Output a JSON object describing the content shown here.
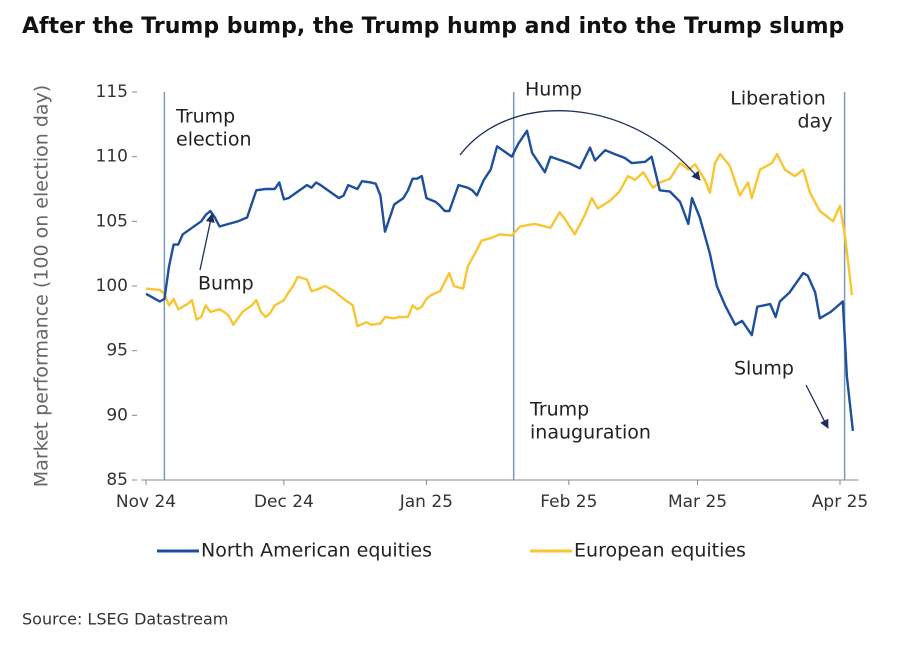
{
  "chart_data": {
    "type": "line",
    "title": "After the Trump bump, the Trump hump and into the Trump slump",
    "y_label": "Market performance (100 on election day)",
    "source": "Source: LSEG Datastream",
    "xlim": [
      -1,
      155
    ],
    "ylim": [
      85,
      115
    ],
    "yticks": [
      85,
      90,
      95,
      100,
      105,
      110,
      115
    ],
    "xticks": [
      {
        "value": 0,
        "label": "Nov 24"
      },
      {
        "value": 30,
        "label": "Dec 24"
      },
      {
        "value": 61,
        "label": "Jan 25"
      },
      {
        "value": 92,
        "label": "Feb 25"
      },
      {
        "value": 120,
        "label": "Mar 25"
      },
      {
        "value": 151,
        "label": "Apr 25"
      }
    ],
    "grid": false,
    "annotations": [
      {
        "lines": [
          "Trump",
          "election"
        ],
        "x": 4
      },
      {
        "lines": [
          "Trump",
          "inauguration"
        ],
        "x": 80
      },
      {
        "lines": [
          "Liberation",
          "day"
        ],
        "x": 152
      },
      {
        "lines": [
          "Bump"
        ]
      },
      {
        "lines": [
          "Hump"
        ]
      },
      {
        "lines": [
          "Slump"
        ]
      }
    ],
    "series": [
      {
        "name": "North American equities",
        "color": "#1d4f9c",
        "x": [
          0,
          2,
          3,
          4,
          5,
          6,
          7,
          8,
          10,
          12,
          13,
          14,
          15,
          16,
          18,
          20,
          22,
          24,
          26,
          28,
          29,
          30,
          31,
          33,
          35,
          36,
          37,
          38,
          40,
          42,
          43,
          44,
          46,
          47,
          49,
          50,
          51,
          52,
          54,
          56,
          57,
          58,
          59,
          60,
          61,
          63,
          64,
          65,
          66,
          68,
          70,
          71,
          72,
          73.5,
          75,
          76.4,
          78,
          79.6,
          81,
          82.9,
          84,
          86.8,
          88,
          89.6,
          92,
          94.4,
          96.6,
          97.7,
          99.9,
          102,
          104.2,
          105.7,
          108.6,
          110,
          111.8,
          114,
          116.2,
          118,
          118.8,
          120.5,
          122.7,
          124.2,
          126,
          128.2,
          129.7,
          131.8,
          133,
          135.8,
          137,
          137.9,
          140,
          143,
          144,
          145.6,
          146.6,
          149,
          151.6,
          152.5,
          153.8
        ],
        "values": [
          99.4,
          99.0,
          98.8,
          99.0,
          101.5,
          103.2,
          103.2,
          104.0,
          104.5,
          105.0,
          105.5,
          105.8,
          105.3,
          104.6,
          104.8,
          105.0,
          105.3,
          107.4,
          107.5,
          107.5,
          108.0,
          106.7,
          106.8,
          107.3,
          107.8,
          107.6,
          108.0,
          107.8,
          107.3,
          106.8,
          107.0,
          107.8,
          107.5,
          108.1,
          108.0,
          107.9,
          107.0,
          104.2,
          106.3,
          106.8,
          107.4,
          108.3,
          108.3,
          108.5,
          106.8,
          106.5,
          106.2,
          105.8,
          105.8,
          107.8,
          107.6,
          107.4,
          107.0,
          108.2,
          109.0,
          110.8,
          110.4,
          110.0,
          111.0,
          112.0,
          110.3,
          108.8,
          110.0,
          109.8,
          109.5,
          109.1,
          110.7,
          109.7,
          110.5,
          110.2,
          109.9,
          109.5,
          109.6,
          110.0,
          107.4,
          107.3,
          106.5,
          104.8,
          106.8,
          105.3,
          102.5,
          100.0,
          98.5,
          97.0,
          97.3,
          96.2,
          98.4,
          98.6,
          97.6,
          98.8,
          99.5,
          101.0,
          100.8,
          99.5,
          97.5,
          98.0,
          98.8,
          93.0,
          88.8
        ]
      },
      {
        "name": "European equities",
        "color": "#f8c630",
        "x": [
          0,
          3,
          4,
          5,
          6,
          7,
          9,
          10,
          11,
          12,
          13,
          14,
          16,
          17,
          18,
          19,
          20,
          21,
          23,
          24,
          25,
          26,
          27,
          28,
          30,
          31,
          32,
          33,
          35,
          36,
          37,
          39,
          41,
          43,
          45,
          46,
          48,
          49,
          51,
          52,
          54,
          55,
          57,
          58,
          59,
          60,
          61,
          62,
          64,
          65,
          66,
          67,
          69,
          70,
          72,
          73,
          75,
          77,
          79.6,
          81.4,
          84.6,
          88,
          90,
          91.1,
          93.3,
          95.5,
          97,
          98.3,
          101,
          103,
          104.9,
          106.4,
          108.2,
          110.3,
          111.8,
          114,
          116.2,
          118,
          119.5,
          121.6,
          122.7,
          123.8,
          124.9,
          127,
          129.2,
          131,
          131.8,
          133.6,
          136.2,
          137.3,
          139,
          141.2,
          143,
          144.5,
          146.6,
          149.5,
          151,
          152.1,
          153.6
        ],
        "values": [
          99.8,
          99.7,
          99.4,
          98.5,
          99.0,
          98.2,
          98.6,
          98.9,
          97.4,
          97.6,
          98.5,
          98.0,
          98.2,
          98.0,
          97.7,
          97.0,
          97.5,
          98.0,
          98.5,
          98.9,
          98.0,
          97.6,
          97.9,
          98.5,
          98.9,
          99.5,
          100.0,
          100.7,
          100.5,
          99.6,
          99.7,
          100.0,
          99.6,
          99.0,
          98.5,
          96.9,
          97.2,
          97.0,
          97.1,
          97.6,
          97.5,
          97.6,
          97.6,
          98.5,
          98.2,
          98.4,
          99.0,
          99.3,
          99.6,
          100.3,
          101.0,
          100.0,
          99.8,
          101.5,
          102.8,
          103.5,
          103.7,
          104.0,
          103.9,
          104.6,
          104.8,
          104.5,
          105.7,
          105.2,
          104.0,
          105.5,
          106.8,
          106.0,
          106.6,
          107.3,
          108.5,
          108.2,
          108.8,
          107.6,
          108.0,
          108.3,
          109.5,
          109.0,
          109.4,
          108.2,
          107.2,
          109.5,
          110.2,
          109.3,
          107.0,
          108.0,
          106.8,
          109.0,
          109.5,
          110.2,
          109.0,
          108.5,
          109.0,
          107.2,
          105.8,
          105.0,
          106.2,
          103.8,
          99.3
        ]
      }
    ]
  }
}
